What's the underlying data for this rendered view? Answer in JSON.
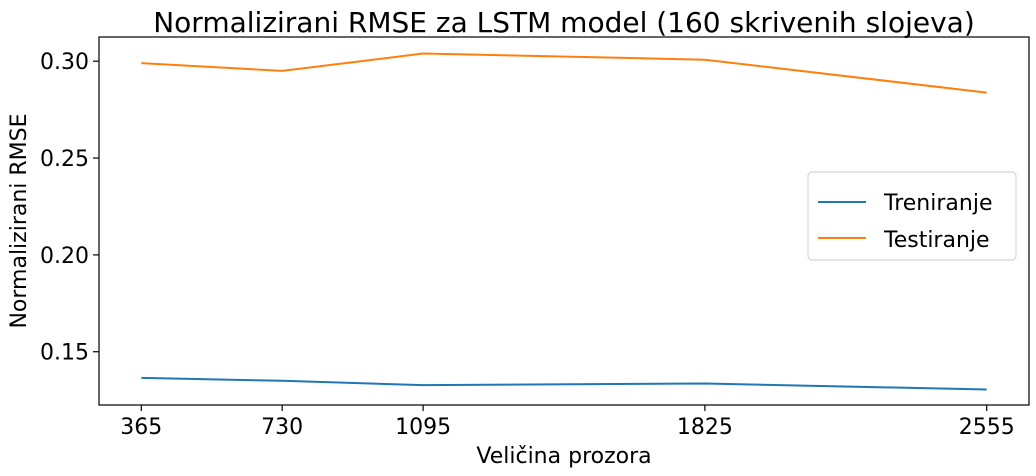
{
  "chart_data": {
    "type": "line",
    "title": "Normalizirani RMSE za LSTM model (160 skrivenih slojeva)",
    "xlabel": "Veličina prozora",
    "ylabel": "Normalizirani RMSE",
    "x": [
      365,
      730,
      1095,
      1825,
      2555
    ],
    "x_tick_labels": [
      "365",
      "730",
      "1095",
      "1825",
      "2555"
    ],
    "xlim": [
      255.5,
      2664.5
    ],
    "y_ticks": [
      0.15,
      0.2,
      0.25,
      0.3
    ],
    "y_tick_labels": [
      "0.15",
      "0.20",
      "0.25",
      "0.30"
    ],
    "ylim": [
      0.1225,
      0.3125
    ],
    "grid": false,
    "legend_position": "center-right",
    "series": [
      {
        "name": "Treniranje",
        "color": "#1f77b4",
        "values": [
          0.1365,
          0.135,
          0.1328,
          0.1336,
          0.1305
        ]
      },
      {
        "name": "Testiranje",
        "color": "#ff7f0e",
        "values": [
          0.299,
          0.295,
          0.304,
          0.3008,
          0.2838
        ]
      }
    ]
  }
}
